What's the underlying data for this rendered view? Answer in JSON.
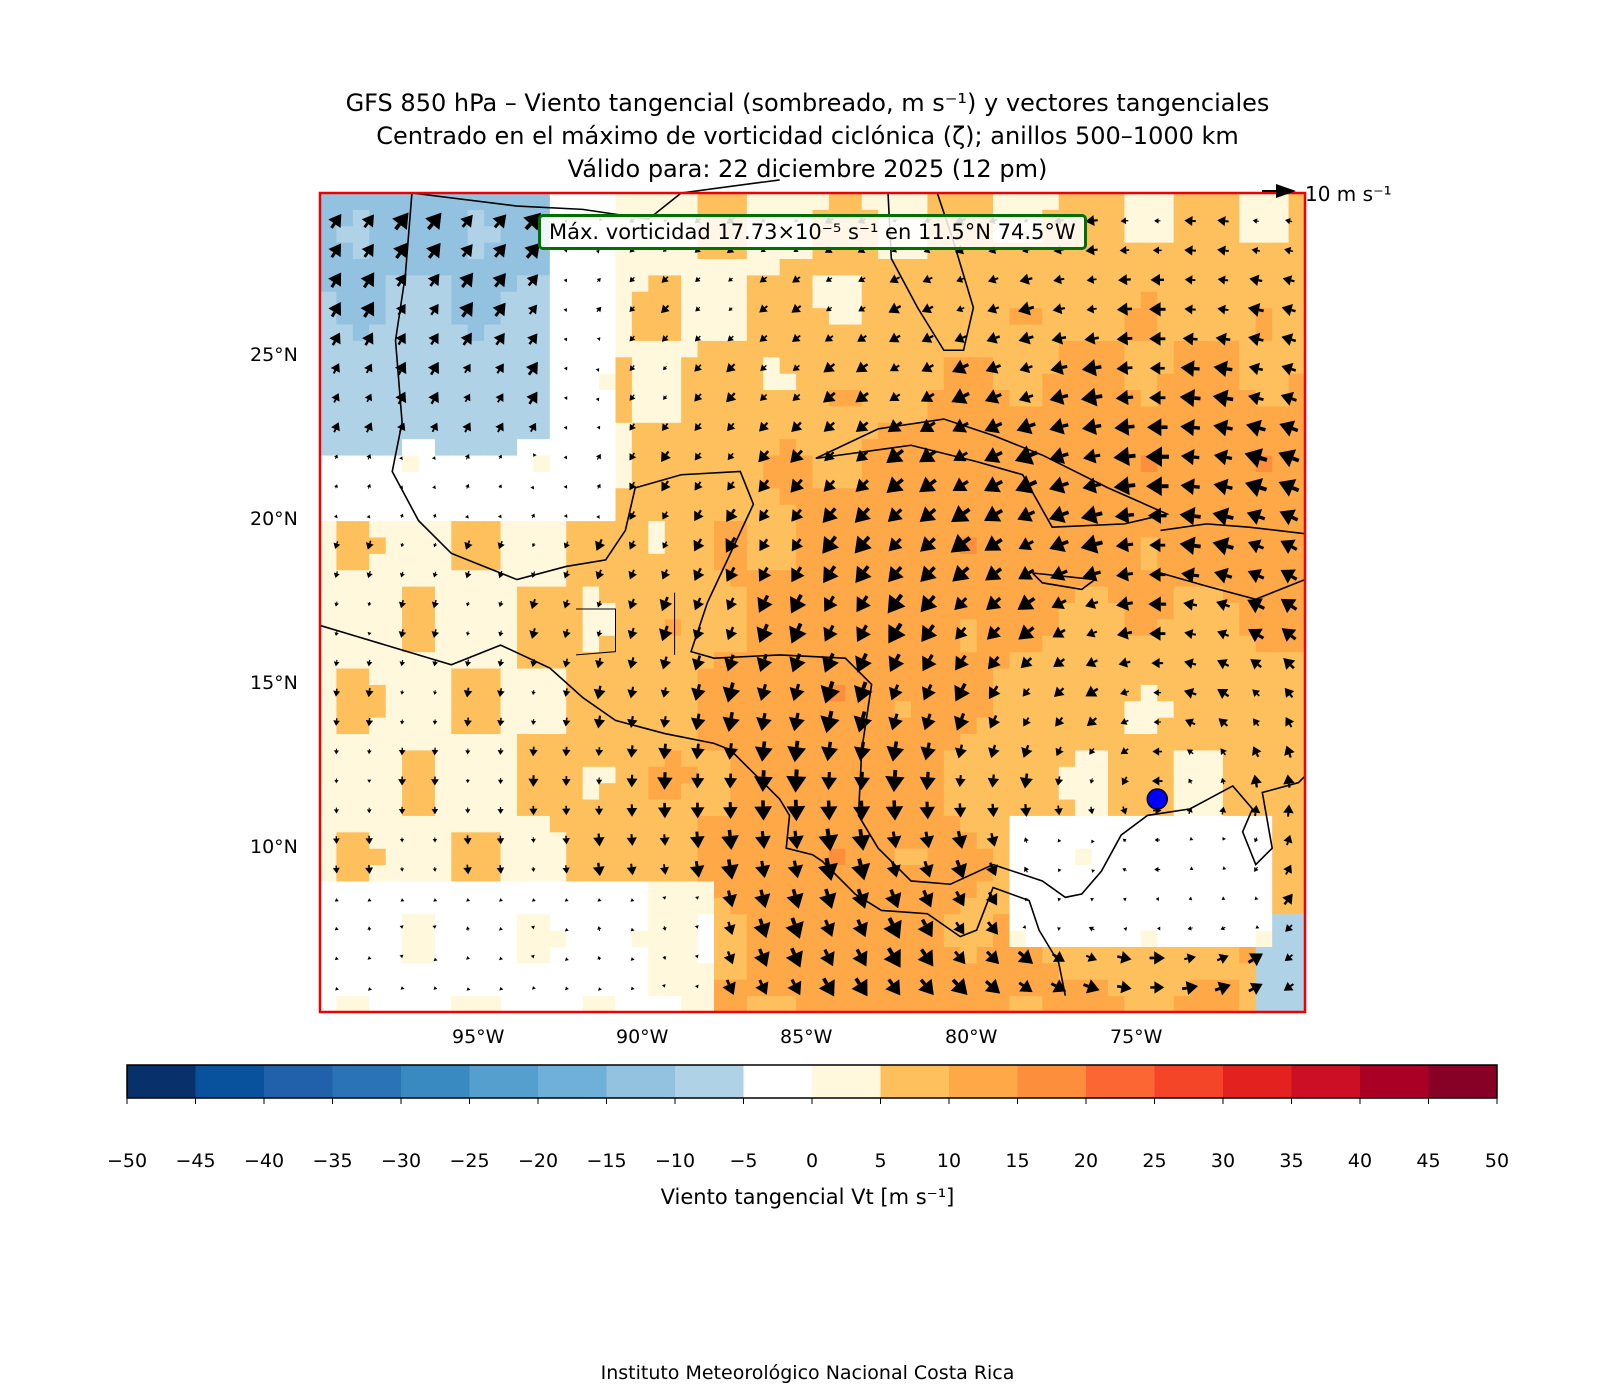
{
  "title": {
    "line1": "GFS 850 hPa – Viento tangencial (sombreado, m s⁻¹) y vectores tangenciales",
    "line2": "Centrado en el máximo de vorticidad ciclónica (ζ); anillos 500–1000 km",
    "line3": "Válido para: 22 diciembre 2025 (12 pm)"
  },
  "annotation": "Máx. vorticidad 17.73×10⁻⁵ s⁻¹ en 11.5°N 74.5°W",
  "quiver_key": "10 m s⁻¹",
  "chart_data": {
    "type": "heatmap",
    "variable": "Viento tangencial Vt",
    "lon_range": [
      -100,
      -70
    ],
    "lat_range": [
      5,
      30
    ],
    "x_ticks": [
      "95°W",
      "90°W",
      "85°W",
      "80°W",
      "75°W"
    ],
    "x_tick_values": [
      -95,
      -90,
      -85,
      -80,
      -75
    ],
    "y_ticks": [
      "25°N",
      "20°N",
      "15°N",
      "10°N"
    ],
    "y_tick_values": [
      25,
      20,
      15,
      10
    ],
    "center": {
      "lat": 11.5,
      "lon": -74.5,
      "color": "#0000ff"
    },
    "colorbar": {
      "label": "Viento tangencial Vt [m s⁻¹]",
      "levels": [
        -50,
        -45,
        -40,
        -35,
        -30,
        -25,
        -20,
        -15,
        -10,
        -5,
        0,
        5,
        10,
        15,
        20,
        25,
        30,
        35,
        40,
        45,
        50
      ],
      "tick_labels": [
        "−50",
        "−45",
        "−40",
        "−35",
        "−30",
        "−25",
        "−20",
        "−15",
        "−10",
        "−5",
        "0",
        "5",
        "10",
        "15",
        "20",
        "25",
        "30",
        "35",
        "40",
        "45",
        "50"
      ],
      "colors": [
        "#08306b",
        "#08519c",
        "#2161ac",
        "#2b73b7",
        "#3a8ac2",
        "#549fcd",
        "#6fb0d8",
        "#92c2df",
        "#b0d2e7",
        "#ffffff",
        "#fff8dc",
        "#fec05c",
        "#fea847",
        "#fd8e3c",
        "#fc6632",
        "#f44528",
        "#e3211e",
        "#cc0f24",
        "#aa0026",
        "#870025"
      ]
    }
  },
  "credit": "Instituto Meteorológico Nacional Costa Rica"
}
